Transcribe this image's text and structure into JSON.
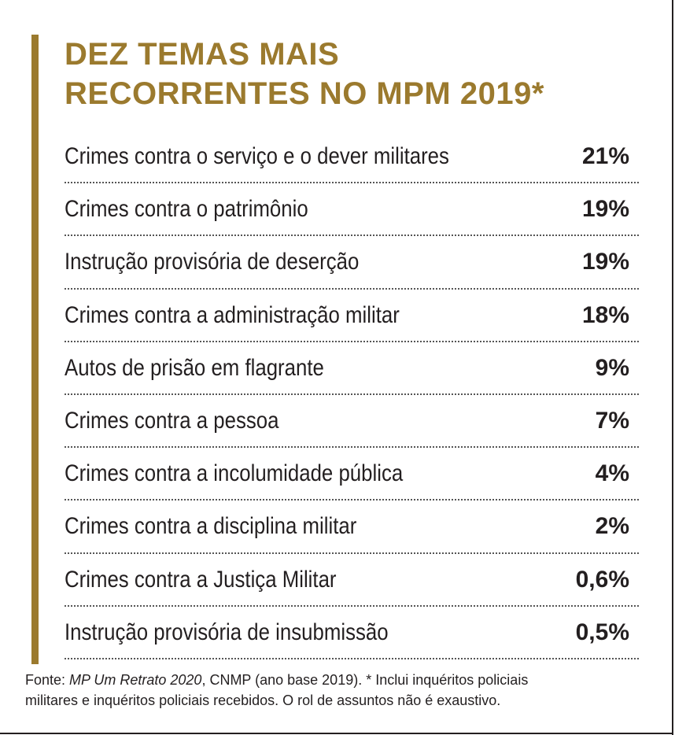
{
  "colors": {
    "accent": "#9b7a2e",
    "text": "#231f20",
    "background": "#ffffff"
  },
  "chart_data": {
    "type": "table",
    "title_lines": [
      "DEZ TEMAS MAIS",
      "RECORRENTES NO MPM 2019*"
    ],
    "rows": [
      {
        "label": "Crimes contra o serviço e o dever militares",
        "value_label": "21%",
        "value": 21
      },
      {
        "label": "Crimes contra o patrimônio",
        "value_label": "19%",
        "value": 19
      },
      {
        "label": "Instrução provisória de deserção",
        "value_label": "19%",
        "value": 19
      },
      {
        "label": "Crimes contra a administração militar",
        "value_label": "18%",
        "value": 18
      },
      {
        "label": "Autos de prisão em flagrante",
        "value_label": "9%",
        "value": 9
      },
      {
        "label": "Crimes contra a pessoa",
        "value_label": "7%",
        "value": 7
      },
      {
        "label": "Crimes contra a incolumidade pública",
        "value_label": "4%",
        "value": 4
      },
      {
        "label": "Crimes contra a  disciplina militar",
        "value_label": "2%",
        "value": 2
      },
      {
        "label": "Crimes contra a Justiça Militar",
        "value_label": "0,6%",
        "value": 0.6
      },
      {
        "label": "Instrução provisória de insubmissão",
        "value_label": "0,5%",
        "value": 0.5
      }
    ]
  },
  "footnote": {
    "prefix": "Fonte: ",
    "source_title": "MP Um Retrato 2020",
    "source_rest": ", CNMP (ano base 2019).    * Inclui inquéritos policiais",
    "line2": "militares e inquéritos policiais recebidos. O rol de assuntos não é exaustivo."
  }
}
